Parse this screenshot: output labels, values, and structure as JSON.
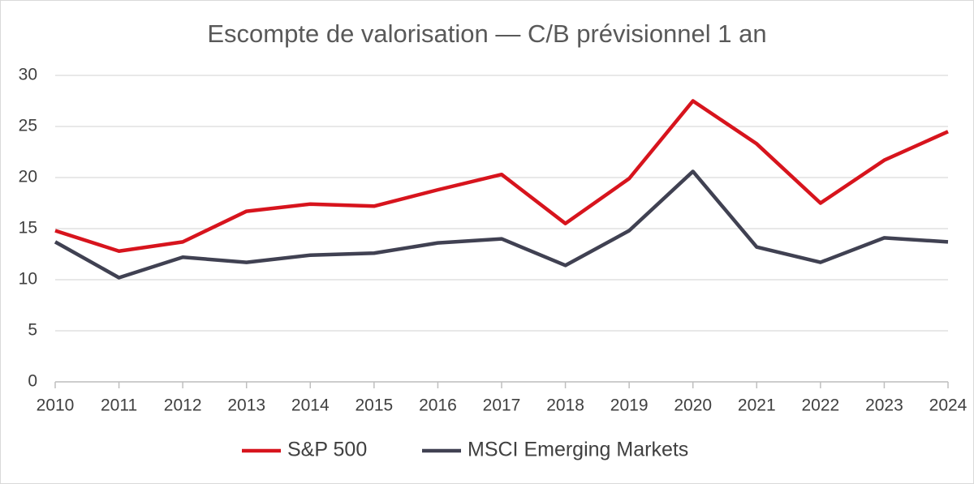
{
  "chart_data": {
    "type": "line",
    "title": "Escompte de valorisation — C/B prévisionnel 1 an",
    "categories": [
      "2010",
      "2011",
      "2012",
      "2013",
      "2014",
      "2015",
      "2016",
      "2017",
      "2018",
      "2019",
      "2020",
      "2021",
      "2022",
      "2023",
      "2024"
    ],
    "series": [
      {
        "name": "S&P 500",
        "color": "#d7141d",
        "values": [
          14.8,
          12.8,
          13.7,
          16.7,
          17.4,
          17.2,
          18.8,
          20.3,
          15.5,
          19.9,
          27.5,
          23.3,
          17.5,
          21.7,
          24.5
        ]
      },
      {
        "name": "MSCI Emerging Markets",
        "color": "#404152",
        "values": [
          13.7,
          10.2,
          12.2,
          11.7,
          12.4,
          12.6,
          13.6,
          14.0,
          11.4,
          14.8,
          20.6,
          13.2,
          11.7,
          14.1,
          13.7
        ]
      }
    ],
    "ylim": [
      0,
      30
    ],
    "yticks": [
      0,
      5,
      10,
      15,
      20,
      25,
      30
    ],
    "grid": true,
    "legend": "bottom"
  }
}
